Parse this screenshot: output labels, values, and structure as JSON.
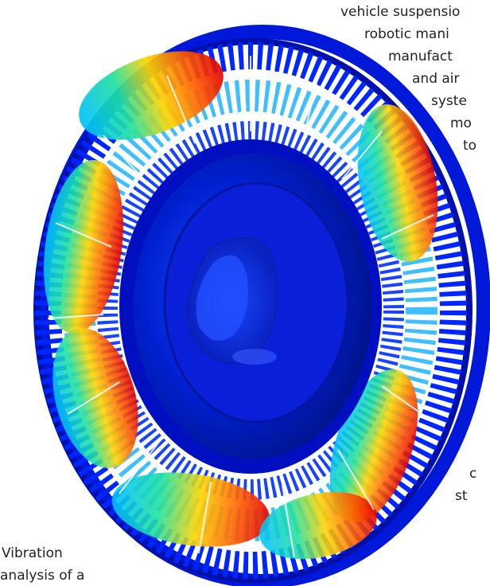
{
  "text_lines": {
    "l1": "vehicle suspensio",
    "l2": "robotic mani",
    "l3": "manufact",
    "l4": "and air",
    "l5": "syste",
    "l6": "mo",
    "l7": "to",
    "l8": "c",
    "l9": "st"
  },
  "caption": {
    "line1": "Vibration",
    "line2": "analysis of a"
  },
  "colors": {
    "stress_scale": [
      "#0018cc",
      "#00c0ff",
      "#20e0a0",
      "#ffd400",
      "#ff6a00",
      "#e00000"
    ],
    "structure_blue": "#0016d8"
  }
}
